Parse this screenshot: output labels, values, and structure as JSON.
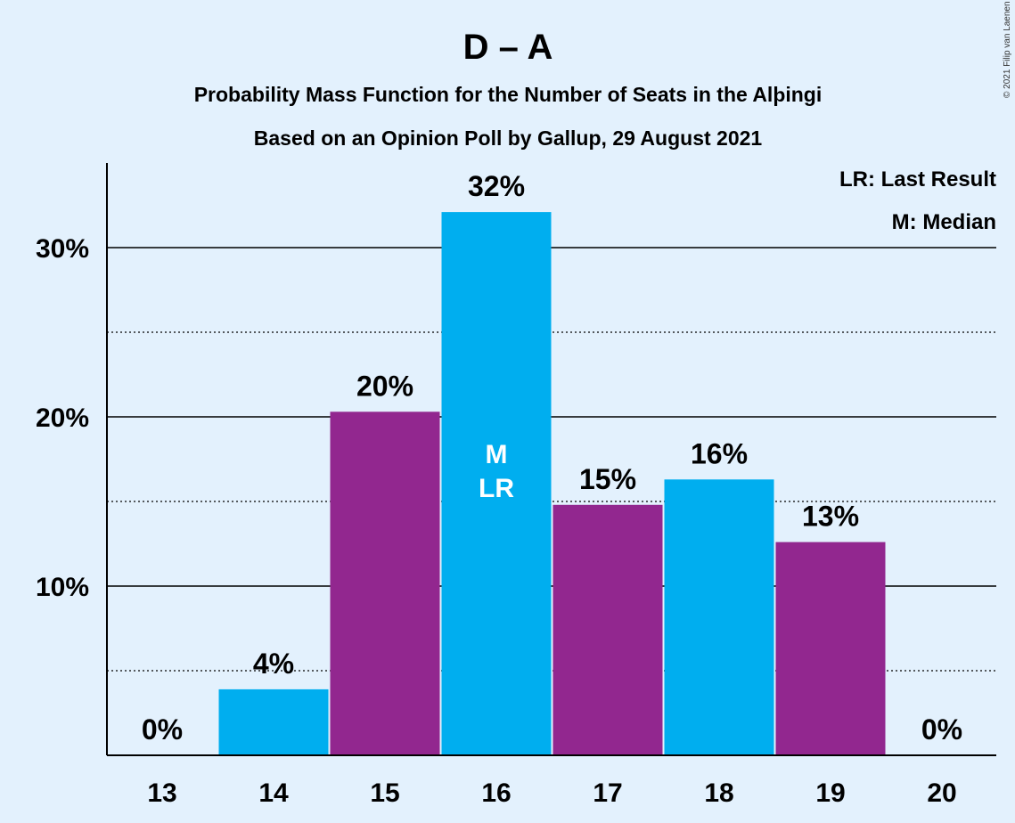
{
  "chart_data": {
    "type": "bar",
    "title": "D – A",
    "subtitle1": "Probability Mass Function for the Number of Seats in the Alþingi",
    "subtitle2": "Based on an Opinion Poll by Gallup, 29 August 2021",
    "categories": [
      "13",
      "14",
      "15",
      "16",
      "17",
      "18",
      "19",
      "20"
    ],
    "values": [
      0,
      3.9,
      20.3,
      32.1,
      14.8,
      16.3,
      12.6,
      0
    ],
    "labels": [
      "0%",
      "4%",
      "20%",
      "32%",
      "15%",
      "16%",
      "13%",
      "0%"
    ],
    "bar_colors": [
      "#00AEEF",
      "#00AEEF",
      "#92278F",
      "#00AEEF",
      "#92278F",
      "#00AEEF",
      "#92278F",
      "#00AEEF"
    ],
    "ylim": [
      0,
      35
    ],
    "yticks": [
      {
        "value": 10,
        "label": "10%"
      },
      {
        "value": 20,
        "label": "20%"
      },
      {
        "value": 30,
        "label": "30%"
      }
    ],
    "minor_gridlines": [
      5,
      15,
      25
    ],
    "markers": {
      "category": "16",
      "lines": [
        "M",
        "LR"
      ]
    },
    "legend": {
      "placement": "top-right",
      "lines": [
        "LR: Last Result",
        "M: Median"
      ]
    },
    "copyright": "© 2021 Filip van Laenen"
  }
}
